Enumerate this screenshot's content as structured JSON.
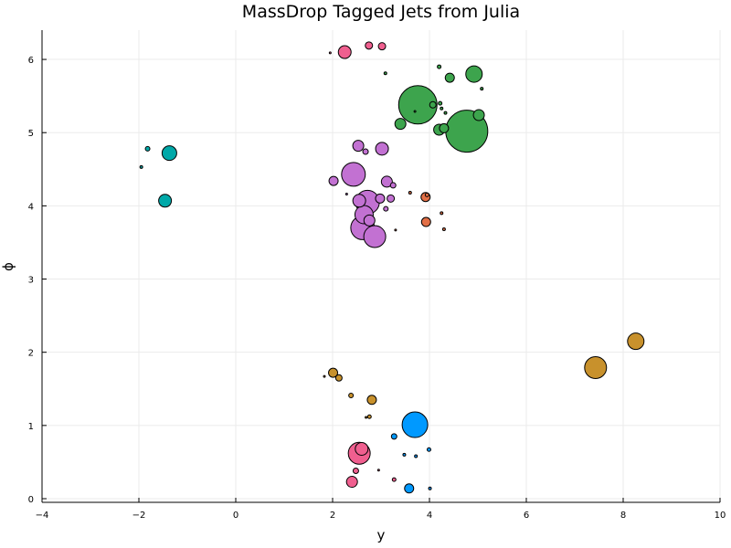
{
  "chart_data": {
    "type": "scatter",
    "title": "MassDrop Tagged Jets from Julia",
    "xlabel": "y",
    "ylabel": "ϕ",
    "xlim": [
      -4,
      10
    ],
    "ylim": [
      0,
      6.4
    ],
    "xticks": [
      -4,
      -2,
      0,
      2,
      4,
      6,
      8,
      10
    ],
    "yticks": [
      0,
      1,
      2,
      3,
      4,
      5,
      6
    ],
    "grid": true,
    "legend": "none",
    "point_size_encoding": "relative marker size",
    "series": [
      {
        "color": "#e26f46",
        "points": [
          {
            "x": 3.92,
            "y": 4.12,
            "size": 5
          },
          {
            "x": 3.93,
            "y": 3.78,
            "size": 5
          },
          {
            "x": 4.25,
            "y": 3.9,
            "size": 1.5
          },
          {
            "x": 4.3,
            "y": 3.68,
            "size": 1.5
          },
          {
            "x": 3.6,
            "y": 4.18,
            "size": 1.5
          },
          {
            "x": 3.3,
            "y": 3.67,
            "size": 1
          },
          {
            "x": 3.95,
            "y": 4.15,
            "size": 2
          }
        ]
      },
      {
        "color": "#c271d2",
        "points": [
          {
            "x": 2.43,
            "y": 4.43,
            "size": 13
          },
          {
            "x": 2.72,
            "y": 4.05,
            "size": 13
          },
          {
            "x": 2.62,
            "y": 3.7,
            "size": 13
          },
          {
            "x": 2.87,
            "y": 3.58,
            "size": 12
          },
          {
            "x": 2.65,
            "y": 3.88,
            "size": 10
          },
          {
            "x": 2.55,
            "y": 4.07,
            "size": 7
          },
          {
            "x": 3.02,
            "y": 4.78,
            "size": 7
          },
          {
            "x": 2.53,
            "y": 4.82,
            "size": 6
          },
          {
            "x": 3.12,
            "y": 4.33,
            "size": 6
          },
          {
            "x": 2.76,
            "y": 3.8,
            "size": 6
          },
          {
            "x": 2.02,
            "y": 4.34,
            "size": 5
          },
          {
            "x": 2.98,
            "y": 4.1,
            "size": 5
          },
          {
            "x": 3.2,
            "y": 4.1,
            "size": 4
          },
          {
            "x": 2.68,
            "y": 4.74,
            "size": 3
          },
          {
            "x": 3.25,
            "y": 4.28,
            "size": 3
          },
          {
            "x": 3.1,
            "y": 3.96,
            "size": 2.5
          },
          {
            "x": 2.29,
            "y": 4.16,
            "size": 1
          }
        ]
      },
      {
        "color": "#3da44d",
        "points": [
          {
            "x": 4.77,
            "y": 5.02,
            "size": 23
          },
          {
            "x": 3.76,
            "y": 5.38,
            "size": 21
          },
          {
            "x": 4.92,
            "y": 5.8,
            "size": 9
          },
          {
            "x": 5.02,
            "y": 5.24,
            "size": 6
          },
          {
            "x": 4.2,
            "y": 5.04,
            "size": 6
          },
          {
            "x": 3.4,
            "y": 5.12,
            "size": 6
          },
          {
            "x": 4.42,
            "y": 5.75,
            "size": 5
          },
          {
            "x": 4.3,
            "y": 5.06,
            "size": 5
          },
          {
            "x": 4.07,
            "y": 5.38,
            "size": 3.5
          },
          {
            "x": 4.2,
            "y": 5.9,
            "size": 2
          },
          {
            "x": 4.22,
            "y": 5.4,
            "size": 2
          },
          {
            "x": 4.25,
            "y": 5.33,
            "size": 1.5
          },
          {
            "x": 4.33,
            "y": 5.27,
            "size": 1.5
          },
          {
            "x": 5.08,
            "y": 5.6,
            "size": 1.5
          },
          {
            "x": 3.09,
            "y": 5.81,
            "size": 1.5
          },
          {
            "x": 3.7,
            "y": 5.29,
            "size": 1
          }
        ]
      },
      {
        "color": "#f05f8f",
        "points": [
          {
            "x": 2.55,
            "y": 0.62,
            "size": 12
          },
          {
            "x": 2.6,
            "y": 0.68,
            "size": 7
          },
          {
            "x": 2.25,
            "y": 6.1,
            "size": 7
          },
          {
            "x": 2.4,
            "y": 0.23,
            "size": 6
          },
          {
            "x": 2.75,
            "y": 6.19,
            "size": 4
          },
          {
            "x": 3.02,
            "y": 6.18,
            "size": 4
          },
          {
            "x": 2.48,
            "y": 0.38,
            "size": 3
          },
          {
            "x": 3.27,
            "y": 0.26,
            "size": 2
          },
          {
            "x": 2.95,
            "y": 0.39,
            "size": 1
          },
          {
            "x": 1.95,
            "y": 6.09,
            "size": 1
          }
        ]
      },
      {
        "color": "#0099ff",
        "points": [
          {
            "x": 3.7,
            "y": 1.01,
            "size": 14
          },
          {
            "x": 3.58,
            "y": 0.14,
            "size": 5
          },
          {
            "x": 3.27,
            "y": 0.85,
            "size": 3
          },
          {
            "x": 3.99,
            "y": 0.67,
            "size": 2
          },
          {
            "x": 3.72,
            "y": 0.58,
            "size": 1.5
          },
          {
            "x": 3.48,
            "y": 0.6,
            "size": 1.5
          },
          {
            "x": 4.01,
            "y": 0.14,
            "size": 1.5
          }
        ]
      },
      {
        "color": "#c8912c",
        "points": [
          {
            "x": 7.43,
            "y": 1.79,
            "size": 12
          },
          {
            "x": 8.26,
            "y": 2.15,
            "size": 9
          },
          {
            "x": 2.01,
            "y": 1.72,
            "size": 5
          },
          {
            "x": 2.81,
            "y": 1.35,
            "size": 5
          },
          {
            "x": 2.13,
            "y": 1.65,
            "size": 3.5
          },
          {
            "x": 2.38,
            "y": 1.41,
            "size": 2.5
          },
          {
            "x": 2.76,
            "y": 1.12,
            "size": 2
          },
          {
            "x": 2.69,
            "y": 1.11,
            "size": 1
          },
          {
            "x": 1.83,
            "y": 1.67,
            "size": 1
          }
        ]
      },
      {
        "color": "#00a8a8",
        "points": [
          {
            "x": -1.37,
            "y": 4.72,
            "size": 8
          },
          {
            "x": -1.46,
            "y": 4.07,
            "size": 7
          },
          {
            "x": -1.82,
            "y": 4.78,
            "size": 2.5
          },
          {
            "x": -1.95,
            "y": 4.53,
            "size": 1.5
          }
        ]
      }
    ]
  }
}
